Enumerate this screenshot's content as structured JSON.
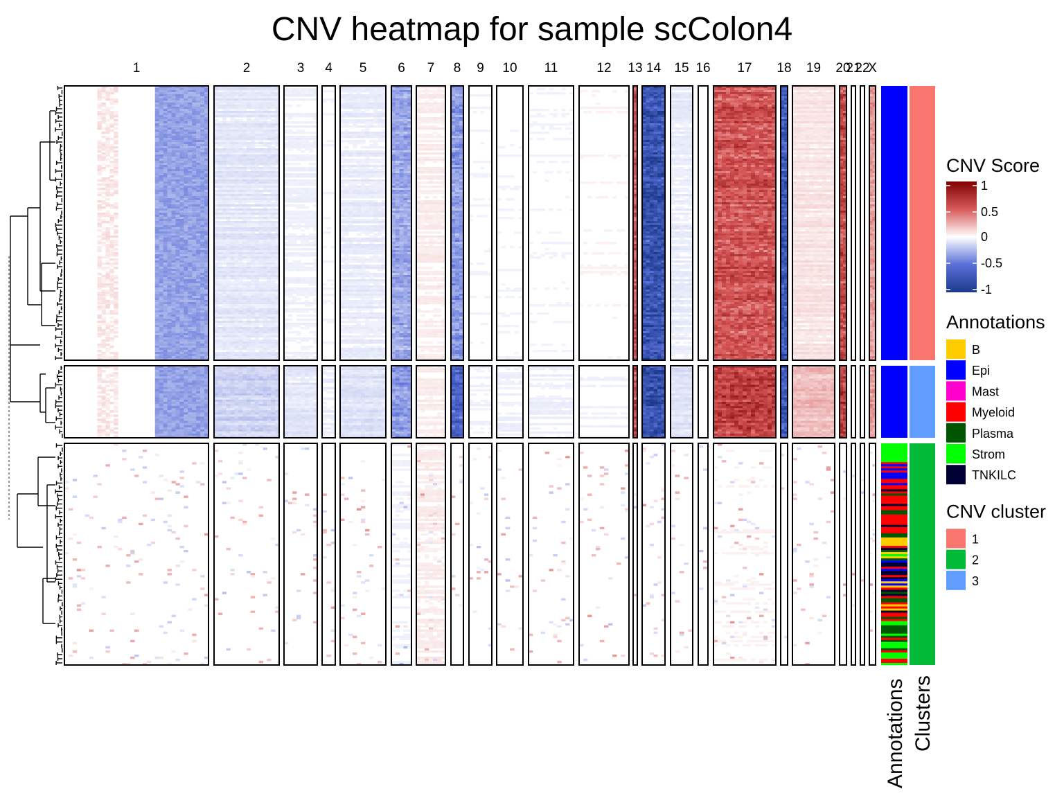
{
  "chart_data": {
    "type": "heatmap",
    "title": "CNV heatmap for sample scColon4",
    "chromosomes": [
      "1",
      "2",
      "3",
      "4",
      "5",
      "6",
      "7",
      "8",
      "9",
      "10",
      "11",
      "12",
      "13",
      "14",
      "15",
      "16",
      "17",
      "18",
      "19",
      "20",
      "21",
      "22",
      "X"
    ],
    "column_annotation_labels": [
      "Annotations",
      "Clusters"
    ],
    "row_groups": [
      {
        "cnv_cluster": "1",
        "annotation": "Epi",
        "n_rows": 132
      },
      {
        "cnv_cluster": "3",
        "annotation": "Epi",
        "n_rows": 34
      },
      {
        "cnv_cluster": "2",
        "annotation": "mixed: Strom, Epi, Myeloid, TNKILC, B, Plasma, Mast",
        "n_rows": 106
      }
    ],
    "cnv_profiles": [
      {
        "cnv_cluster": "1",
        "chr": [
          "1",
          "2",
          "3",
          "4",
          "5",
          "6",
          "7",
          "8",
          "9",
          "10",
          "11",
          "12",
          "13",
          "14",
          "15",
          "16",
          "17",
          "18",
          "19",
          "20",
          "21",
          "22",
          "X"
        ],
        "mean_score": [
          -0.12,
          -0.08,
          -0.04,
          -0.02,
          -0.06,
          -0.3,
          0.05,
          -0.35,
          -0.02,
          -0.02,
          -0.02,
          0.02,
          0.55,
          -0.75,
          -0.06,
          0.0,
          0.55,
          -0.7,
          0.08,
          0.6,
          0.0,
          0.0,
          0.3
        ]
      },
      {
        "cnv_cluster": "3",
        "chr": [
          "1",
          "2",
          "3",
          "4",
          "5",
          "6",
          "7",
          "8",
          "9",
          "10",
          "11",
          "12",
          "13",
          "14",
          "15",
          "16",
          "17",
          "18",
          "19",
          "20",
          "21",
          "22",
          "X"
        ],
        "mean_score": [
          -0.18,
          -0.15,
          -0.08,
          -0.05,
          -0.1,
          -0.35,
          0.05,
          -0.6,
          -0.03,
          -0.04,
          -0.04,
          -0.03,
          0.6,
          -0.8,
          -0.1,
          0.0,
          0.65,
          -0.7,
          0.2,
          0.65,
          0.0,
          0.0,
          0.3
        ]
      },
      {
        "cnv_cluster": "2",
        "chr": [
          "1",
          "2",
          "3",
          "4",
          "5",
          "6",
          "7",
          "8",
          "9",
          "10",
          "11",
          "12",
          "13",
          "14",
          "15",
          "16",
          "17",
          "18",
          "19",
          "20",
          "21",
          "22",
          "X"
        ],
        "mean_score": [
          0.01,
          0.0,
          0.0,
          0.0,
          0.01,
          -0.03,
          0.05,
          0.0,
          0.0,
          0.0,
          0.0,
          0.0,
          0.0,
          0.0,
          0.0,
          0.0,
          0.02,
          0.0,
          0.0,
          0.0,
          0.0,
          0.0,
          0.0
        ]
      }
    ],
    "color_scale": {
      "name": "CNV Score",
      "ticks": [
        "1",
        "0.5",
        "0",
        "-0.5",
        "-1"
      ],
      "min": -1,
      "max": 1,
      "low": "#1b3a8c",
      "mid": "#ffffff",
      "high": "#800000"
    },
    "legends": [
      {
        "title": "Annotations",
        "entries": [
          {
            "label": "B",
            "color": "#ffcc00"
          },
          {
            "label": "Epi",
            "color": "#0000ff"
          },
          {
            "label": "Mast",
            "color": "#ff00cc"
          },
          {
            "label": "Myeloid",
            "color": "#ff0000"
          },
          {
            "label": "Plasma",
            "color": "#005500"
          },
          {
            "label": "Strom",
            "color": "#00ff00"
          },
          {
            "label": "TNKILC",
            "color": "#000033"
          }
        ]
      },
      {
        "title": "CNV cluster",
        "entries": [
          {
            "label": "1",
            "color": "#f8766d"
          },
          {
            "label": "2",
            "color": "#00ba38"
          },
          {
            "label": "3",
            "color": "#619cff"
          }
        ]
      }
    ]
  }
}
